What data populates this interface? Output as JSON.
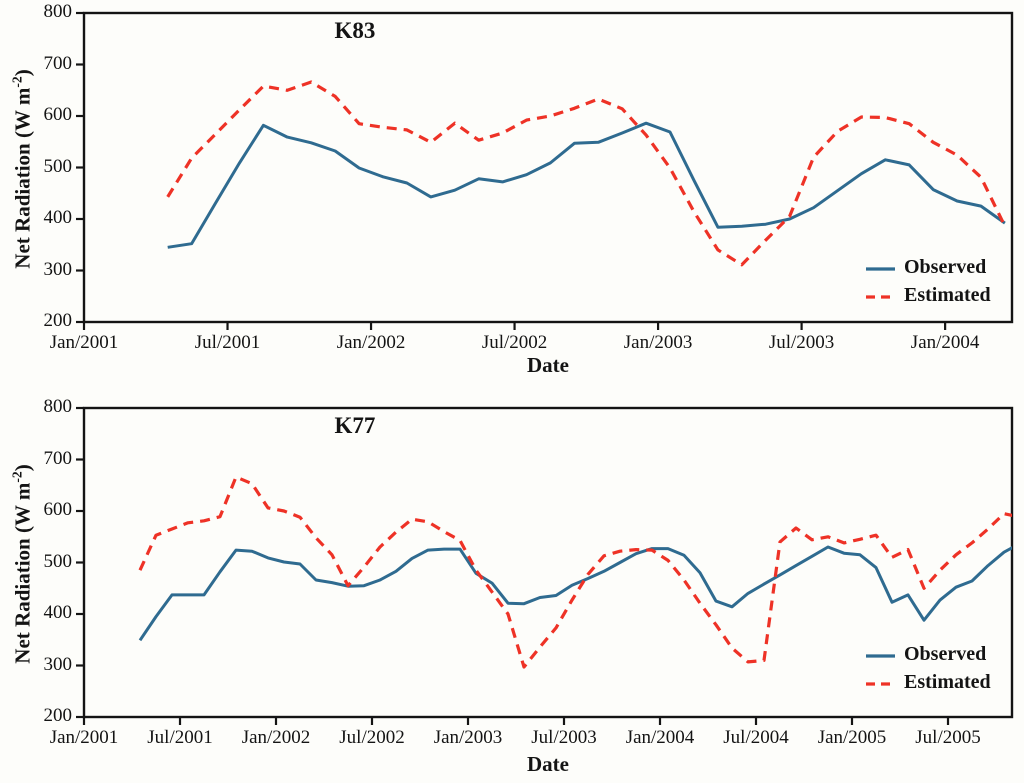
{
  "figure": {
    "background": "#fdfdfa",
    "axis_color": "#141414",
    "xlabel": "Date",
    "ylabel": "Net Radiation (W m⁻²)",
    "ylabel_main": "Net Radiation (W m",
    "ylabel_sup": "-2",
    "ylabel_close": ")"
  },
  "chart_data": [
    {
      "type": "line",
      "title": "K83",
      "xlabel": "Date",
      "ylabel": "Net Radiation (W m⁻²)",
      "ylim": [
        200,
        800
      ],
      "ytick_labels": [
        "800",
        "700",
        "600",
        "500",
        "400",
        "300",
        "200"
      ],
      "xtick_labels": [
        "Jan/2001",
        "Jul/2001",
        "Jan/2002",
        "Jul/2002",
        "Jan/2003",
        "Jul/2003",
        "Jan/2004"
      ],
      "xtick_months": [
        0,
        6,
        12,
        18,
        24,
        30,
        36
      ],
      "x_start": "Apr/2001",
      "x_step": "monthly",
      "grid": false,
      "legend_position": "lower right",
      "series": [
        {
          "name": "Observed",
          "color": "#2f6b90",
          "style": "solid",
          "values": [
            345,
            352,
            431,
            509,
            582,
            559,
            548,
            532,
            499,
            482,
            470,
            443,
            456,
            478,
            472,
            486,
            509,
            547,
            549,
            567,
            586,
            569,
            475,
            384,
            386,
            390,
            400,
            422,
            455,
            488,
            515,
            505,
            457,
            435,
            425,
            392
          ]
        },
        {
          "name": "Estimated",
          "color": "#ee3226",
          "style": "dashed",
          "values": [
            443,
            518,
            565,
            612,
            658,
            650,
            666,
            638,
            585,
            578,
            573,
            549,
            586,
            553,
            567,
            592,
            600,
            615,
            633,
            614,
            563,
            499,
            414,
            340,
            311,
            359,
            405,
            520,
            570,
            598,
            597,
            585,
            549,
            524,
            481,
            386
          ]
        }
      ]
    },
    {
      "type": "line",
      "title": "K77",
      "xlabel": "Date",
      "ylabel": "Net Radiation (W m⁻²)",
      "ylim": [
        200,
        800
      ],
      "ytick_labels": [
        "800",
        "700",
        "600",
        "500",
        "400",
        "300",
        "200"
      ],
      "xtick_labels": [
        "Jan/2001",
        "Jul/2001",
        "Jan/2002",
        "Jul/2002",
        "Jan/2003",
        "Jul/2003",
        "Jan/2004",
        "Jul/2004",
        "Jan/2005",
        "Jul/2005"
      ],
      "xtick_months": [
        0,
        6,
        12,
        18,
        24,
        30,
        36,
        42,
        48,
        54
      ],
      "x_start": "Apr/2001",
      "x_step": "monthly",
      "grid": false,
      "legend_position": "lower right",
      "series": [
        {
          "name": "Observed",
          "color": "#2f6b90",
          "style": "solid",
          "values": [
            349,
            395,
            437,
            437,
            437,
            482,
            524,
            522,
            509,
            501,
            497,
            466,
            461,
            454,
            455,
            466,
            483,
            508,
            524,
            526,
            526,
            479,
            460,
            421,
            420,
            432,
            436,
            456,
            469,
            483,
            500,
            517,
            527,
            527,
            514,
            480,
            425,
            414,
            440,
            458,
            476,
            494,
            512,
            530,
            518,
            515,
            490,
            423,
            437,
            388,
            427,
            452,
            464,
            494,
            520,
            537
          ]
        },
        {
          "name": "Estimated",
          "color": "#ee3226",
          "style": "dashed",
          "values": [
            485,
            553,
            565,
            577,
            581,
            589,
            666,
            653,
            606,
            600,
            588,
            548,
            515,
            455,
            491,
            530,
            559,
            584,
            579,
            560,
            543,
            485,
            443,
            400,
            297,
            336,
            373,
            427,
            477,
            513,
            522,
            525,
            524,
            504,
            466,
            421,
            379,
            334,
            307,
            310,
            540,
            567,
            544,
            550,
            538,
            545,
            553,
            510,
            525,
            450,
            485,
            515,
            538,
            565,
            595,
            588
          ]
        }
      ]
    }
  ]
}
